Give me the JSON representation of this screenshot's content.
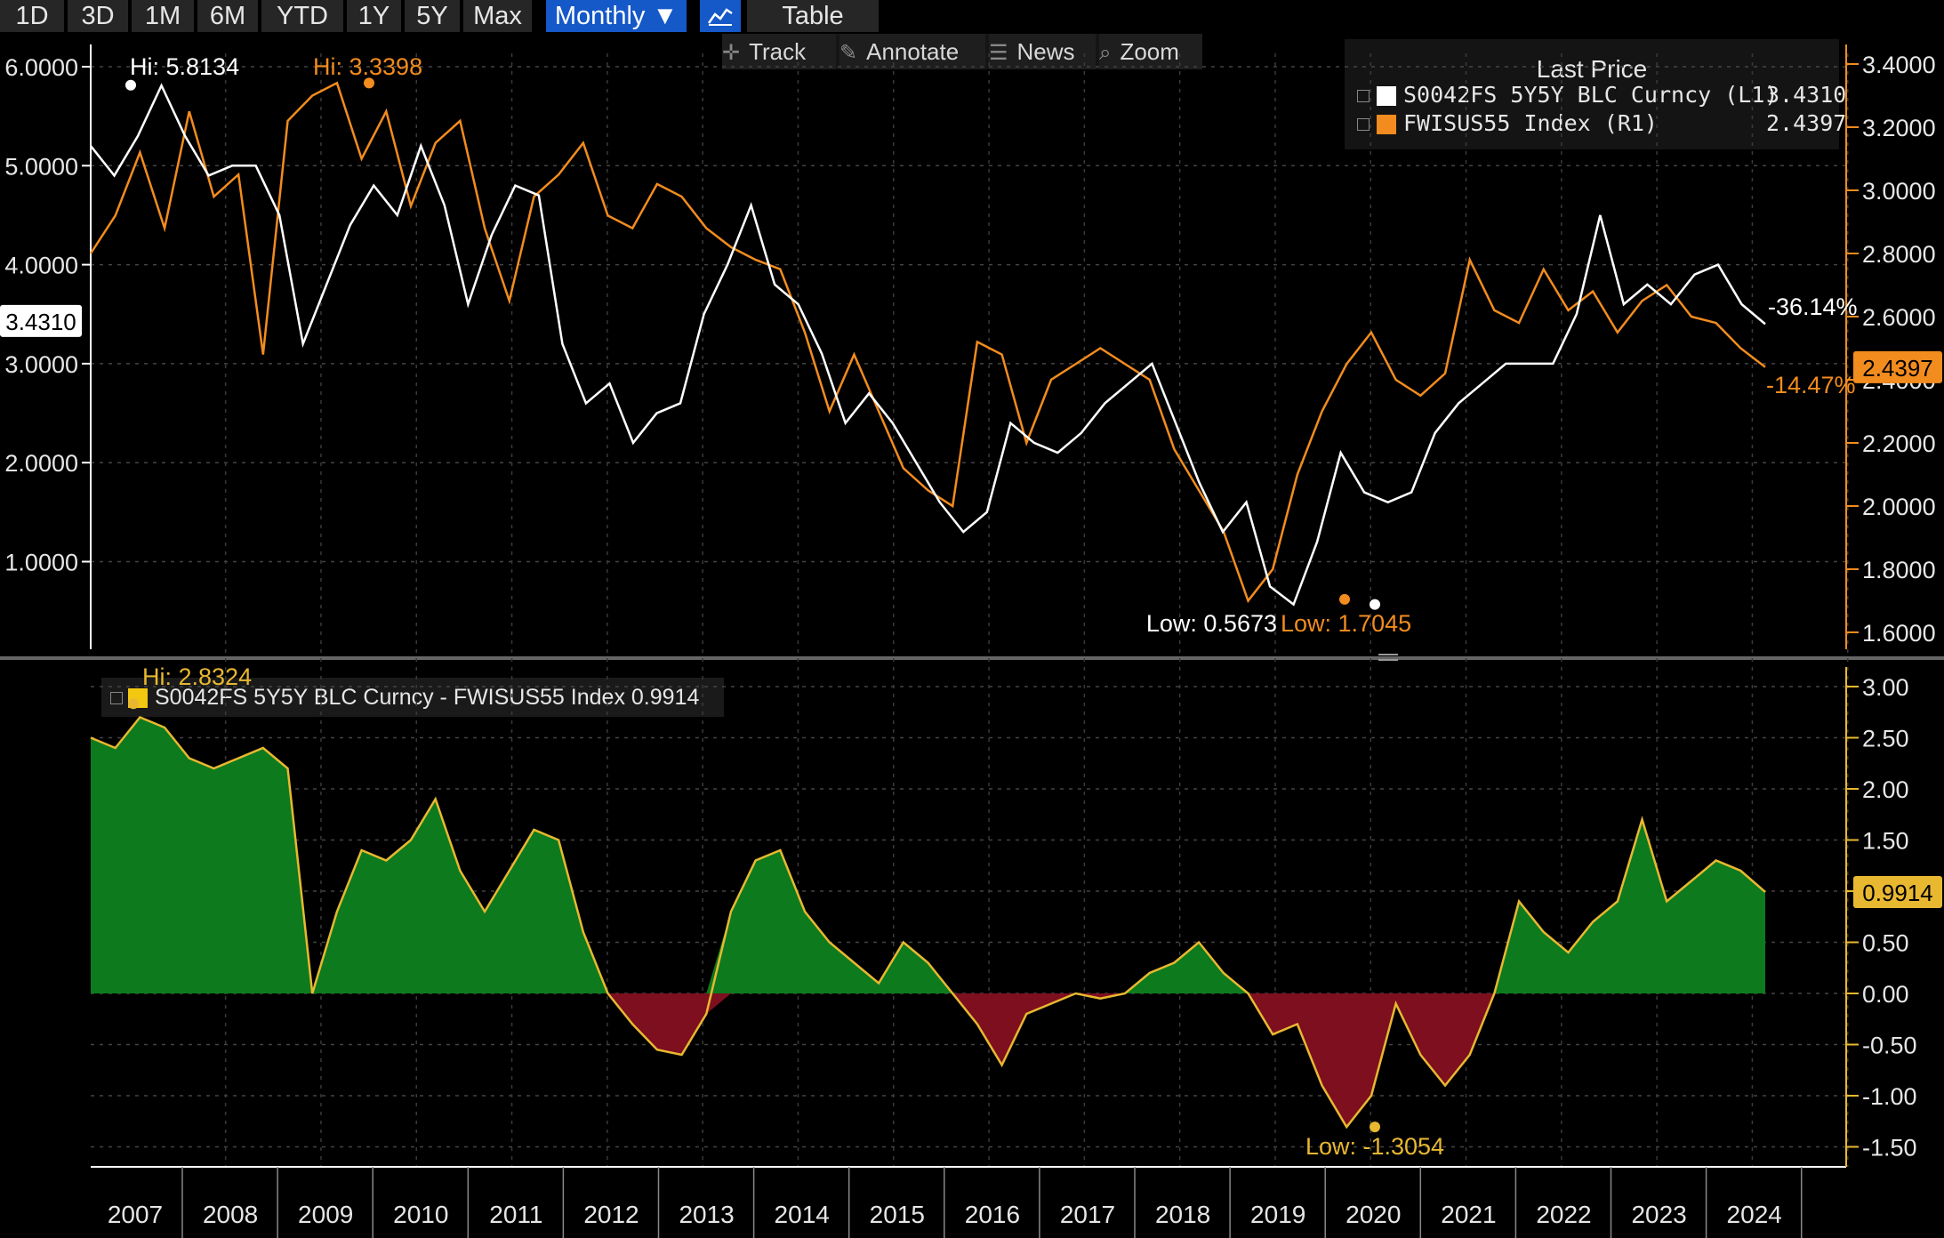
{
  "toolbar": {
    "buttons": [
      "1D",
      "3D",
      "1M",
      "6M",
      "YTD",
      "1Y",
      "5Y",
      "Max"
    ],
    "period": "Monthly ▼",
    "chart_icon": "line-chart-icon",
    "table": "Table"
  },
  "subtoolbar": {
    "track": "Track",
    "annotate": "Annotate",
    "news": "News",
    "zoom": "Zoom"
  },
  "legend": {
    "title": "Last Price",
    "rows": [
      {
        "label": "S0042FS 5Y5Y BLC Curncy  (L1)",
        "value": "3.4310",
        "color": "#ffffff"
      },
      {
        "label": "FWISUS55 Index  (R1)",
        "value": "2.4397",
        "color": "#f28c1e"
      }
    ]
  },
  "legend2": {
    "label": "S0042FS 5Y5Y BLC Curncy - FWISUS55 Index",
    "value": "0.9914",
    "color": "#f2c811"
  },
  "colors": {
    "white_series": "#ffffff",
    "orange_series": "#f28c1e",
    "spread_line": "#e8b830",
    "positive_fill": "#0d7a1e",
    "negative_fill": "#7d0f1f",
    "axis": "#f28c1e"
  },
  "chart_data": [
    {
      "type": "line",
      "x_axis": "time (monthly)",
      "left_axis": {
        "min": 0,
        "max": 6.5,
        "ticks": [
          "6.0000",
          "5.0000",
          "4.0000",
          "3.0000",
          "2.0000",
          "1.0000"
        ],
        "tick_values": [
          6,
          5,
          4,
          3,
          2,
          1
        ]
      },
      "right_axis": {
        "min": 1.55,
        "max": 3.45,
        "ticks": [
          "3.4000",
          "3.2000",
          "3.0000",
          "2.8000",
          "2.6000",
          "2.4000",
          "2.2000",
          "2.0000",
          "1.8000",
          "1.6000"
        ],
        "tick_values": [
          3.4,
          3.2,
          3.0,
          2.8,
          2.6,
          2.4,
          2.2,
          2.0,
          1.8,
          1.6
        ]
      },
      "series": [
        {
          "name": "S0042FS 5Y5Y BLC Curncy (L1)",
          "axis": "left",
          "points": [
            [
              2006.5,
              5.2
            ],
            [
              2006.75,
              4.9
            ],
            [
              2007.0,
              5.3
            ],
            [
              2007.25,
              5.81
            ],
            [
              2007.5,
              5.3
            ],
            [
              2007.75,
              4.9
            ],
            [
              2008.0,
              5.0
            ],
            [
              2008.25,
              5.0
            ],
            [
              2008.5,
              4.5
            ],
            [
              2008.75,
              3.2
            ],
            [
              2009.0,
              3.8
            ],
            [
              2009.25,
              4.4
            ],
            [
              2009.5,
              4.8
            ],
            [
              2009.75,
              4.5
            ],
            [
              2010.0,
              5.2
            ],
            [
              2010.25,
              4.6
            ],
            [
              2010.5,
              3.6
            ],
            [
              2010.75,
              4.3
            ],
            [
              2011.0,
              4.8
            ],
            [
              2011.25,
              4.7
            ],
            [
              2011.5,
              3.2
            ],
            [
              2011.75,
              2.6
            ],
            [
              2012.0,
              2.8
            ],
            [
              2012.25,
              2.2
            ],
            [
              2012.5,
              2.5
            ],
            [
              2012.75,
              2.6
            ],
            [
              2013.0,
              3.5
            ],
            [
              2013.25,
              4.0
            ],
            [
              2013.5,
              4.6
            ],
            [
              2013.75,
              3.8
            ],
            [
              2014.0,
              3.6
            ],
            [
              2014.25,
              3.1
            ],
            [
              2014.5,
              2.4
            ],
            [
              2014.75,
              2.7
            ],
            [
              2015.0,
              2.4
            ],
            [
              2015.25,
              2.0
            ],
            [
              2015.5,
              1.6
            ],
            [
              2015.75,
              1.3
            ],
            [
              2016.0,
              1.5
            ],
            [
              2016.25,
              2.4
            ],
            [
              2016.5,
              2.2
            ],
            [
              2016.75,
              2.1
            ],
            [
              2017.0,
              2.3
            ],
            [
              2017.25,
              2.6
            ],
            [
              2017.5,
              2.8
            ],
            [
              2017.75,
              3.0
            ],
            [
              2018.0,
              2.4
            ],
            [
              2018.25,
              1.8
            ],
            [
              2018.5,
              1.3
            ],
            [
              2018.75,
              1.6
            ],
            [
              2019.0,
              0.75
            ],
            [
              2019.25,
              0.5673
            ],
            [
              2019.5,
              1.2
            ],
            [
              2019.75,
              2.1
            ],
            [
              2020.0,
              1.7
            ],
            [
              2020.25,
              1.6
            ],
            [
              2020.5,
              1.7
            ],
            [
              2020.75,
              2.3
            ],
            [
              2021.0,
              2.6
            ],
            [
              2021.25,
              2.8
            ],
            [
              2021.5,
              3.0
            ],
            [
              2021.75,
              3.0
            ],
            [
              2022.0,
              3.0
            ],
            [
              2022.25,
              3.5
            ],
            [
              2022.5,
              4.5
            ],
            [
              2022.75,
              3.6
            ],
            [
              2023.0,
              3.8
            ],
            [
              2023.25,
              3.6
            ],
            [
              2023.5,
              3.9
            ],
            [
              2023.75,
              4.0
            ],
            [
              2024.0,
              3.6
            ],
            [
              2024.25,
              3.4
            ]
          ]
        },
        {
          "name": "FWISUS55 Index (R1)",
          "axis": "right",
          "points": [
            [
              2006.5,
              2.8
            ],
            [
              2006.75,
              2.92
            ],
            [
              2007.0,
              3.12
            ],
            [
              2007.25,
              2.88
            ],
            [
              2007.5,
              3.25
            ],
            [
              2007.75,
              2.98
            ],
            [
              2008.0,
              3.05
            ],
            [
              2008.25,
              2.48
            ],
            [
              2008.5,
              3.22
            ],
            [
              2008.75,
              3.3
            ],
            [
              2009.0,
              3.34
            ],
            [
              2009.25,
              3.1
            ],
            [
              2009.5,
              3.25
            ],
            [
              2009.75,
              2.95
            ],
            [
              2010.0,
              3.15
            ],
            [
              2010.25,
              3.22
            ],
            [
              2010.5,
              2.88
            ],
            [
              2010.75,
              2.65
            ],
            [
              2011.0,
              2.98
            ],
            [
              2011.25,
              3.05
            ],
            [
              2011.5,
              3.15
            ],
            [
              2011.75,
              2.92
            ],
            [
              2012.0,
              2.88
            ],
            [
              2012.25,
              3.02
            ],
            [
              2012.5,
              2.98
            ],
            [
              2012.75,
              2.88
            ],
            [
              2013.0,
              2.82
            ],
            [
              2013.25,
              2.78
            ],
            [
              2013.5,
              2.75
            ],
            [
              2013.75,
              2.55
            ],
            [
              2014.0,
              2.3
            ],
            [
              2014.25,
              2.48
            ],
            [
              2014.5,
              2.3
            ],
            [
              2014.75,
              2.12
            ],
            [
              2015.0,
              2.05
            ],
            [
              2015.25,
              2.0
            ],
            [
              2015.5,
              2.52
            ],
            [
              2015.75,
              2.48
            ],
            [
              2016.0,
              2.2
            ],
            [
              2016.25,
              2.4
            ],
            [
              2016.5,
              2.45
            ],
            [
              2016.75,
              2.5
            ],
            [
              2017.0,
              2.45
            ],
            [
              2017.25,
              2.4
            ],
            [
              2017.5,
              2.18
            ],
            [
              2017.75,
              2.05
            ],
            [
              2018.0,
              1.92
            ],
            [
              2018.25,
              1.7
            ],
            [
              2018.5,
              1.8
            ],
            [
              2018.75,
              2.1
            ],
            [
              2019.0,
              2.3
            ],
            [
              2019.25,
              2.45
            ],
            [
              2019.5,
              2.55
            ],
            [
              2019.75,
              2.4
            ],
            [
              2020.0,
              2.35
            ],
            [
              2020.25,
              2.42
            ],
            [
              2020.5,
              2.78
            ],
            [
              2020.75,
              2.62
            ],
            [
              2021.0,
              2.58
            ],
            [
              2021.25,
              2.75
            ],
            [
              2021.5,
              2.62
            ],
            [
              2021.75,
              2.68
            ],
            [
              2022.0,
              2.55
            ],
            [
              2022.25,
              2.65
            ],
            [
              2022.5,
              2.7
            ],
            [
              2022.75,
              2.6
            ],
            [
              2023.0,
              2.58
            ],
            [
              2023.25,
              2.5
            ],
            [
              2023.5,
              2.44
            ]
          ]
        }
      ],
      "annotations": [
        {
          "text": "Hi: 5.8134",
          "color": "#ffffff"
        },
        {
          "text": "Hi: 3.3398",
          "color": "#f28c1e"
        },
        {
          "text": "Low: 0.5673",
          "color": "#ffffff"
        },
        {
          "text": "Low: 1.7045",
          "color": "#f28c1e"
        },
        {
          "text": "-36.14%",
          "color": "#ffffff"
        },
        {
          "text": "-14.47%",
          "color": "#f28c1e"
        }
      ],
      "last_value_tags": [
        {
          "text": "3.4310",
          "axis": "left",
          "value": 3.431
        },
        {
          "text": "2.4397",
          "axis": "right",
          "value": 2.4397
        }
      ]
    },
    {
      "type": "area",
      "series_name": "S0042FS 5Y5Y BLC Curncy - FWISUS55 Index",
      "y_axis": {
        "min": -1.7,
        "max": 3.1,
        "ticks": [
          "3.00",
          "2.50",
          "2.00",
          "1.50",
          "1.00",
          "0.50",
          "0.00",
          "-0.50",
          "-1.00",
          "-1.50"
        ],
        "tick_values": [
          3,
          2.5,
          2,
          1.5,
          1,
          0.5,
          0,
          -0.5,
          -1,
          -1.5
        ]
      },
      "points": [
        [
          2006.5,
          2.5
        ],
        [
          2006.75,
          2.4
        ],
        [
          2007.0,
          2.7
        ],
        [
          2007.25,
          2.6
        ],
        [
          2007.5,
          2.3
        ],
        [
          2007.75,
          2.2
        ],
        [
          2008.0,
          2.3
        ],
        [
          2008.25,
          2.4
        ],
        [
          2008.5,
          2.2
        ],
        [
          2008.75,
          0.0
        ],
        [
          2009.0,
          0.8
        ],
        [
          2009.25,
          1.4
        ],
        [
          2009.5,
          1.3
        ],
        [
          2009.75,
          1.5
        ],
        [
          2010.0,
          1.9
        ],
        [
          2010.25,
          1.2
        ],
        [
          2010.5,
          0.8
        ],
        [
          2010.75,
          1.2
        ],
        [
          2011.0,
          1.6
        ],
        [
          2011.25,
          1.5
        ],
        [
          2011.5,
          0.6
        ],
        [
          2011.75,
          0.0
        ],
        [
          2012.0,
          -0.3
        ],
        [
          2012.25,
          -0.55
        ],
        [
          2012.5,
          -0.6
        ],
        [
          2012.75,
          -0.2
        ],
        [
          2013.0,
          0.8
        ],
        [
          2013.25,
          1.3
        ],
        [
          2013.5,
          1.4
        ],
        [
          2013.75,
          0.8
        ],
        [
          2014.0,
          0.5
        ],
        [
          2014.25,
          0.3
        ],
        [
          2014.5,
          0.1
        ],
        [
          2014.75,
          0.5
        ],
        [
          2015.0,
          0.3
        ],
        [
          2015.25,
          0.0
        ],
        [
          2015.5,
          -0.3
        ],
        [
          2015.75,
          -0.7
        ],
        [
          2016.0,
          -0.2
        ],
        [
          2016.25,
          -0.1
        ],
        [
          2016.5,
          0.0
        ],
        [
          2016.75,
          -0.05
        ],
        [
          2017.0,
          0.0
        ],
        [
          2017.25,
          0.2
        ],
        [
          2017.5,
          0.3
        ],
        [
          2017.75,
          0.5
        ],
        [
          2018.0,
          0.2
        ],
        [
          2018.25,
          0.0
        ],
        [
          2018.5,
          -0.4
        ],
        [
          2018.75,
          -0.3
        ],
        [
          2019.0,
          -0.9
        ],
        [
          2019.25,
          -1.3054
        ],
        [
          2019.5,
          -1.0
        ],
        [
          2019.75,
          -0.1
        ],
        [
          2020.0,
          -0.6
        ],
        [
          2020.25,
          -0.9
        ],
        [
          2020.5,
          -0.6
        ],
        [
          2020.75,
          0.0
        ],
        [
          2021.0,
          0.9
        ],
        [
          2021.25,
          0.6
        ],
        [
          2021.5,
          0.4
        ],
        [
          2021.75,
          0.7
        ],
        [
          2022.0,
          0.9
        ],
        [
          2022.25,
          1.7
        ],
        [
          2022.5,
          0.9
        ],
        [
          2022.75,
          1.1
        ],
        [
          2023.0,
          1.3
        ],
        [
          2023.25,
          1.2
        ],
        [
          2023.5,
          0.9914
        ]
      ],
      "annotations": [
        {
          "text": "Hi: 2.8324",
          "color": "#e8b830"
        },
        {
          "text": "Low: -1.3054",
          "color": "#e8b830"
        }
      ],
      "last_value_tag": {
        "text": "0.9914",
        "value": 0.9914
      }
    }
  ],
  "x_axis": {
    "labels": [
      "2007",
      "2008",
      "2009",
      "2010",
      "2011",
      "2012",
      "2013",
      "2014",
      "2015",
      "2016",
      "2017",
      "2018",
      "2019",
      "2020",
      "2021",
      "2022",
      "2023",
      "2024"
    ]
  }
}
